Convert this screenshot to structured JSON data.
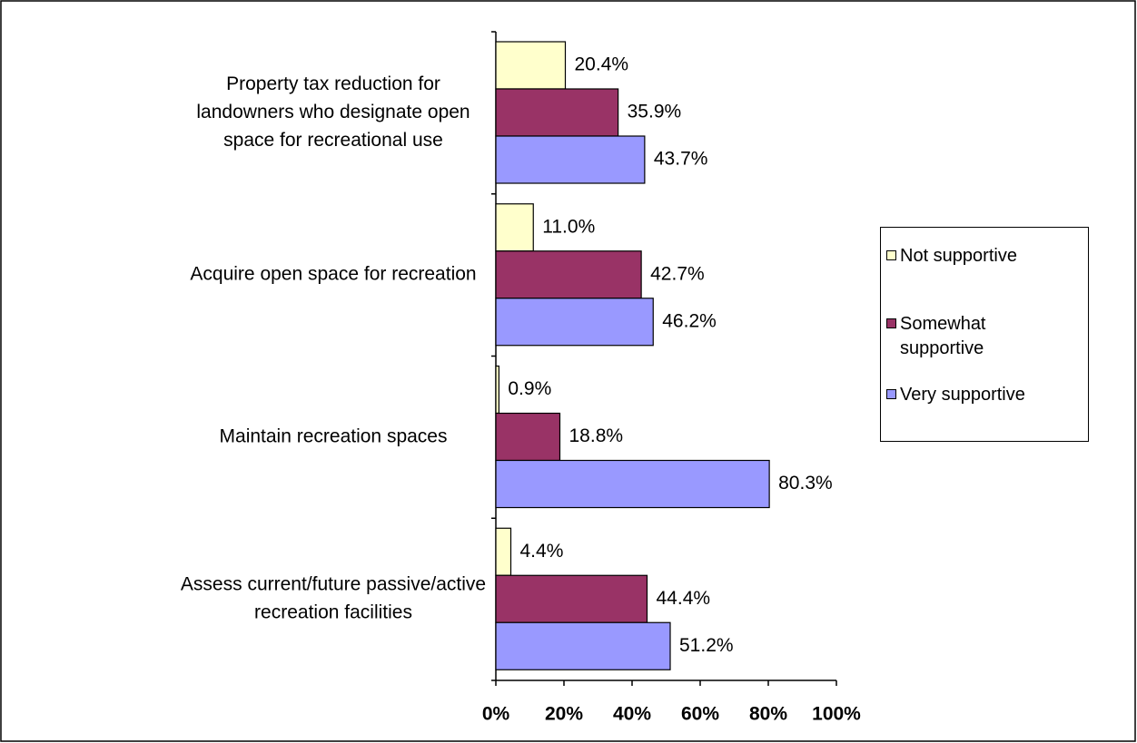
{
  "chart_data": {
    "type": "bar",
    "orientation": "horizontal",
    "categories": [
      [
        "Property tax reduction for",
        "landowners who designate open",
        "space for recreational use"
      ],
      [
        "Acquire open space for recreation"
      ],
      [
        "Maintain recreation spaces"
      ],
      [
        "Assess current/future passive/active",
        "recreation facilities"
      ]
    ],
    "series": [
      {
        "name": "Not supportive",
        "color": "#ffffcc",
        "values": [
          20.4,
          11.0,
          0.9,
          4.4
        ],
        "value_labels": [
          "20.4%",
          "11.0%",
          "0.9%",
          "4.4%"
        ]
      },
      {
        "name": "Somewhat supportive",
        "color": "#993366",
        "values": [
          35.9,
          42.7,
          18.8,
          44.4
        ],
        "value_labels": [
          "35.9%",
          "42.7%",
          "18.8%",
          "44.4%"
        ]
      },
      {
        "name": "Very supportive",
        "color": "#9999ff",
        "values": [
          43.7,
          46.2,
          80.3,
          51.2
        ],
        "value_labels": [
          "43.7%",
          "46.2%",
          "80.3%",
          "51.2%"
        ]
      }
    ],
    "xlim": [
      0,
      100
    ],
    "xticks": [
      {
        "value": 0,
        "label": "0%"
      },
      {
        "value": 20,
        "label": "20%"
      },
      {
        "value": 40,
        "label": "40%"
      },
      {
        "value": 60,
        "label": "60%"
      },
      {
        "value": 80,
        "label": "80%"
      },
      {
        "value": 100,
        "label": "100%"
      }
    ],
    "legend": "right"
  }
}
